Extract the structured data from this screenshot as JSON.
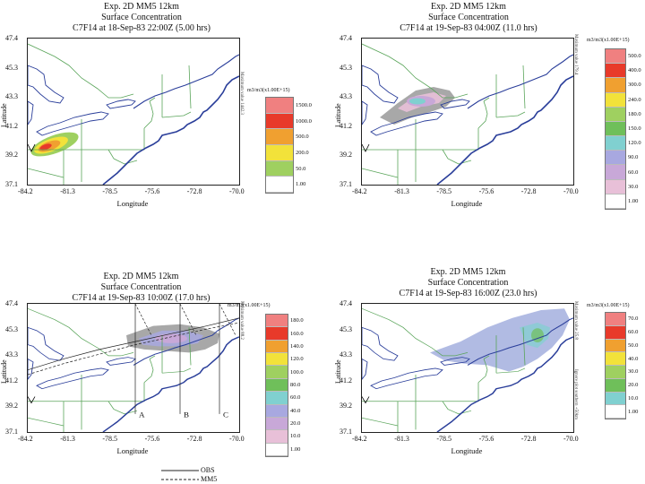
{
  "axes": {
    "y_ticks": [
      "47.4",
      "45.3",
      "43.3",
      "41.2",
      "39.2",
      "37.1"
    ],
    "x_ticks": [
      "-84.2",
      "-81.3",
      "-78.5",
      "-75.6",
      "-72.8",
      "-70.0"
    ],
    "ylabel": "Latitude",
    "xlabel": "Longitude",
    "lat_range": [
      37.1,
      47.4
    ],
    "lon_range": [
      -84.2,
      -70.0
    ]
  },
  "panels": [
    {
      "id": "p1",
      "title1": "Exp. 2D MM5 12km",
      "title2": "Surface Concentration",
      "title3": "C7F14 at 18-Sep-83 22:00Z (5.00 hrs)",
      "legend_unit": "m3/m3(x1.00E+15)",
      "side_note": "Maximum value 1442.3",
      "legend": [
        {
          "value": "1500.0",
          "color": "#f08080"
        },
        {
          "value": "1000.0",
          "color": "#e83a2a"
        },
        {
          "value": "500.0",
          "color": "#f0a030"
        },
        {
          "value": "200.0",
          "color": "#f2e23a"
        },
        {
          "value": "50.0",
          "color": "#9fd060"
        },
        {
          "value": "1.00",
          "color": "#6fbf5a"
        }
      ]
    },
    {
      "id": "p2",
      "title1": "Exp. 2D MM5 12km",
      "title2": "Surface Concentration",
      "title3": "C7F14 at 19-Sep-83 04:00Z (11.0 hrs)",
      "legend_unit": "m3/m3(x1.00E+15)",
      "side_note": "Maximum value 179.4",
      "legend": [
        {
          "value": "500.0",
          "color": "#f08080"
        },
        {
          "value": "400.0",
          "color": "#e83a2a"
        },
        {
          "value": "300.0",
          "color": "#f0a030"
        },
        {
          "value": "240.0",
          "color": "#f2e23a"
        },
        {
          "value": "180.0",
          "color": "#9fd060"
        },
        {
          "value": "150.0",
          "color": "#6fbf5a"
        },
        {
          "value": "120.0",
          "color": "#80d0d0"
        },
        {
          "value": "90.0",
          "color": "#a8a8e0"
        },
        {
          "value": "60.0",
          "color": "#c8a8d8"
        },
        {
          "value": "30.0",
          "color": "#e8c0d8"
        },
        {
          "value": "1.00",
          "color": "#a8a8a8"
        }
      ]
    },
    {
      "id": "p3",
      "title1": "Exp. 2D MM5 12km",
      "title2": "Surface Concentration",
      "title3": "C7F14 at 19-Sep-83 10:00Z (17.0 hrs)",
      "legend_unit": "m3/m3(x1.00E+15)",
      "side_note": "Maximum value 88.2",
      "legend": [
        {
          "value": "180.0",
          "color": "#f08080"
        },
        {
          "value": "160.0",
          "color": "#e83a2a"
        },
        {
          "value": "140.0",
          "color": "#f0a030"
        },
        {
          "value": "120.0",
          "color": "#f2e23a"
        },
        {
          "value": "100.0",
          "color": "#9fd060"
        },
        {
          "value": "80.0",
          "color": "#6fbf5a"
        },
        {
          "value": "60.0",
          "color": "#80d0d0"
        },
        {
          "value": "40.0",
          "color": "#a8a8e0"
        },
        {
          "value": "20.0",
          "color": "#c8a8d8"
        },
        {
          "value": "10.0",
          "color": "#e8c0d8"
        },
        {
          "value": "1.00",
          "color": "#a8a8a8"
        }
      ],
      "arc_labels": [
        "A",
        "B",
        "C"
      ],
      "line_legend": {
        "obs": "OBS",
        "mm5": "MM5"
      }
    },
    {
      "id": "p4",
      "title1": "Exp. 2D MM5 12km",
      "title2": "Surface Concentration",
      "title3": "C7F14 at 19-Sep-83 16:00Z (23.0 hrs)",
      "legend_unit": "m3/m3(x1.00E+15)",
      "side_note": "Maximum value 25.8",
      "side_note2": "Ignore plot southern +50km",
      "legend": [
        {
          "value": "70.0",
          "color": "#f08080"
        },
        {
          "value": "60.0",
          "color": "#e83a2a"
        },
        {
          "value": "50.0",
          "color": "#f0a030"
        },
        {
          "value": "40.0",
          "color": "#f2e23a"
        },
        {
          "value": "30.0",
          "color": "#9fd060"
        },
        {
          "value": "20.0",
          "color": "#6fbf5a"
        },
        {
          "value": "10.0",
          "color": "#80d0d0"
        },
        {
          "value": "1.00",
          "color": "#a8b4e0"
        }
      ]
    }
  ]
}
